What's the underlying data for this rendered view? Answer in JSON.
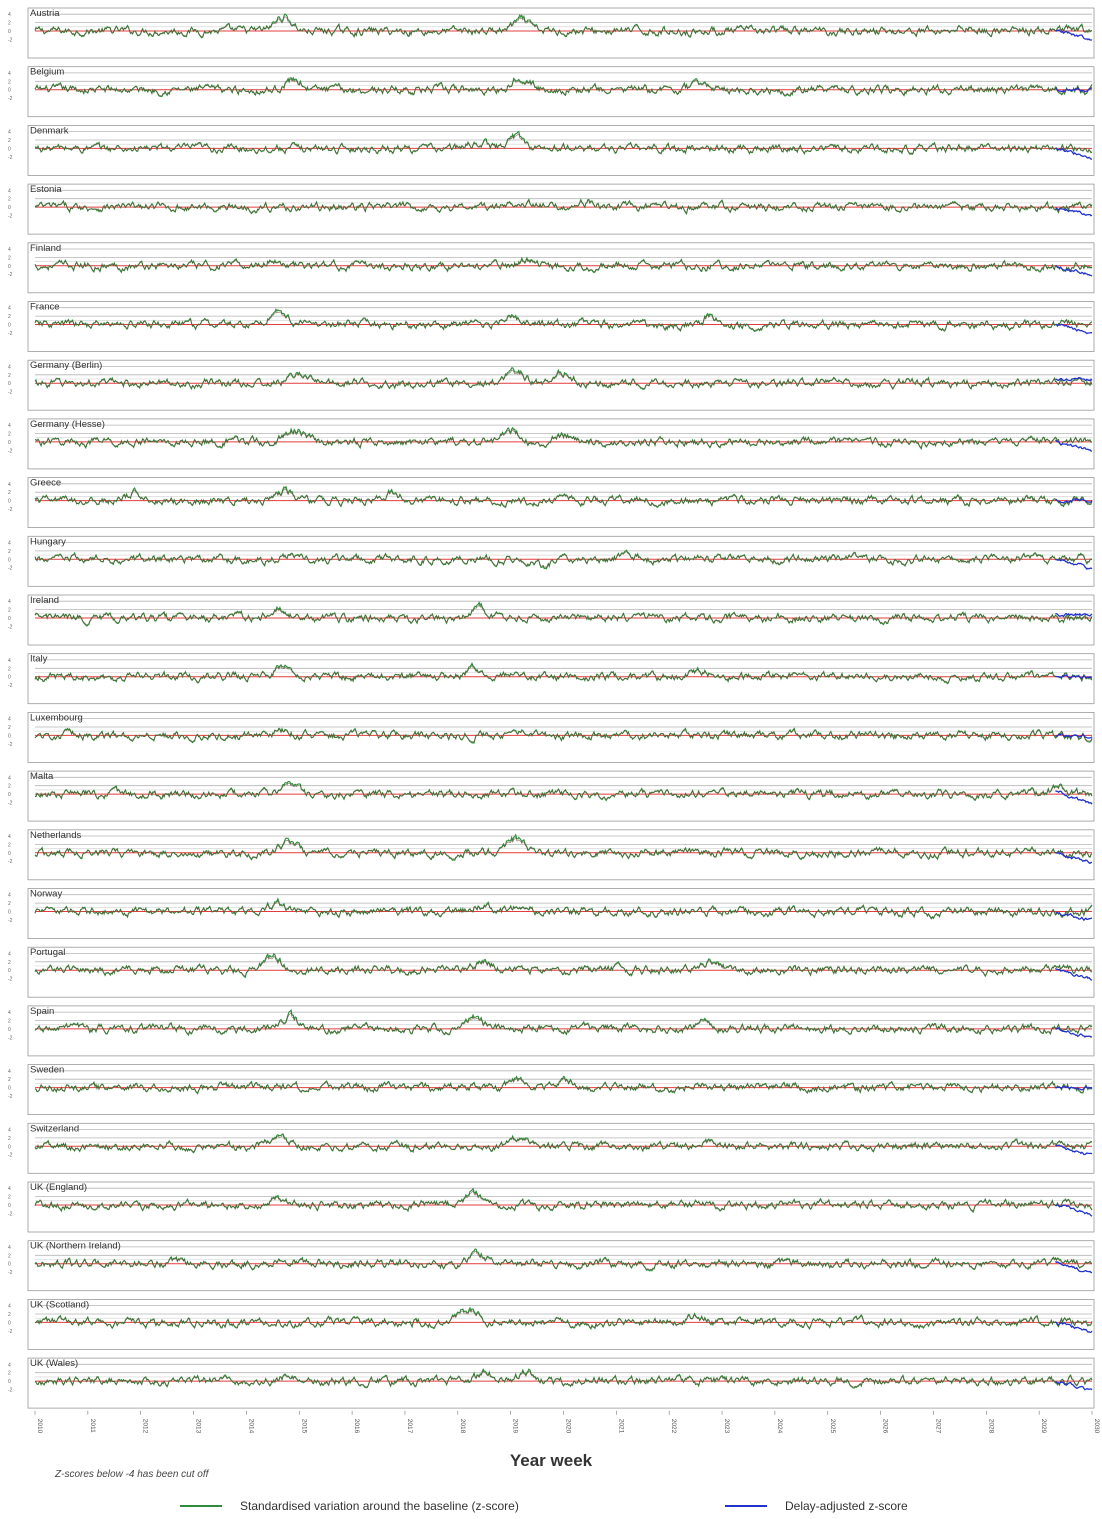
{
  "chart_data": {
    "type": "line",
    "xlabel": "Year week",
    "note": "Z-scores below -4 has been cut off",
    "x_ticks": [
      "2010",
      "2011",
      "2012",
      "2013",
      "2014",
      "2015",
      "2016",
      "2017",
      "2018",
      "2019",
      "2020",
      "2021",
      "2022",
      "2023",
      "2024",
      "2025",
      "2026",
      "2027",
      "2028",
      "2029",
      "2030"
    ],
    "legend": [
      {
        "label": "Standardised variation around the baseline (z-score)",
        "color": "#2e8b3a"
      },
      {
        "label": "Delay-adjusted z-score",
        "color": "#2233cc"
      }
    ],
    "reference_lines": {
      "baseline_color": "#e23c3c",
      "threshold_color": "#aaaaaa"
    },
    "panels": [
      {
        "name": "Austria",
        "peaks": [
          {
            "x": 2014.7,
            "h": 3.5
          },
          {
            "x": 2019.2,
            "h": 2.5
          },
          {
            "x": 2027.6,
            "h": 1.0
          }
        ],
        "tail_delay": "down"
      },
      {
        "name": "Belgium",
        "peaks": [
          {
            "x": 2014.9,
            "h": 2.5
          },
          {
            "x": 2019.2,
            "h": 3.5
          },
          {
            "x": 2022.6,
            "h": 1.5
          }
        ],
        "tail_delay": "flat"
      },
      {
        "name": "Denmark",
        "peaks": [
          {
            "x": 2019.1,
            "h": 3.0
          },
          {
            "x": 2018.4,
            "h": 1.5
          }
        ],
        "tail_delay": "down"
      },
      {
        "name": "Estonia",
        "peaks": [
          {
            "x": 2019.2,
            "h": 1.5
          },
          {
            "x": 2020.4,
            "h": 1.2
          }
        ],
        "tail_delay": "down"
      },
      {
        "name": "Finland",
        "peaks": [
          {
            "x": 2014.5,
            "h": 1.5
          },
          {
            "x": 2019.3,
            "h": 1.5
          }
        ],
        "tail_delay": "down"
      },
      {
        "name": "France",
        "peaks": [
          {
            "x": 2014.6,
            "h": 3.5
          },
          {
            "x": 2019.0,
            "h": 2.5
          },
          {
            "x": 2022.8,
            "h": 2.0
          }
        ],
        "tail_delay": "down"
      },
      {
        "name": "Germany (Berlin)",
        "peaks": [
          {
            "x": 2015.0,
            "h": 2.5
          },
          {
            "x": 2019.1,
            "h": 3.0
          },
          {
            "x": 2020.0,
            "h": 2.5
          }
        ],
        "tail_delay": "up"
      },
      {
        "name": "Germany (Hesse)",
        "peaks": [
          {
            "x": 2014.9,
            "h": 3.0
          },
          {
            "x": 2019.0,
            "h": 3.0
          },
          {
            "x": 2020.0,
            "h": 1.5
          }
        ],
        "tail_delay": "down"
      },
      {
        "name": "Greece",
        "peaks": [
          {
            "x": 2014.7,
            "h": 2.5
          },
          {
            "x": 2011.9,
            "h": 1.8
          },
          {
            "x": 2016.8,
            "h": 1.8
          }
        ],
        "tail_delay": "flat"
      },
      {
        "name": "Hungary",
        "peaks": [
          {
            "x": 2014.8,
            "h": 1.2
          },
          {
            "x": 2021.2,
            "h": 1.0
          },
          {
            "x": 2019.6,
            "h": -1.5
          }
        ],
        "tail_delay": "down"
      },
      {
        "name": "Ireland",
        "peaks": [
          {
            "x": 2014.6,
            "h": 2.5
          },
          {
            "x": 2018.4,
            "h": 2.5
          }
        ],
        "tail_delay": "up"
      },
      {
        "name": "Italy",
        "peaks": [
          {
            "x": 2014.7,
            "h": 3.0
          },
          {
            "x": 2018.3,
            "h": 2.0
          },
          {
            "x": 2022.6,
            "h": 1.5
          }
        ],
        "tail_delay": "flat"
      },
      {
        "name": "Luxembourg",
        "peaks": [
          {
            "x": 2014.7,
            "h": 1.2
          },
          {
            "x": 2019.2,
            "h": 1.0
          }
        ],
        "tail_delay": "flat"
      },
      {
        "name": "Malta",
        "peaks": [
          {
            "x": 2014.8,
            "h": 1.8
          },
          {
            "x": 2029.4,
            "h": 1.5
          }
        ],
        "tail_delay": "down"
      },
      {
        "name": "Netherlands",
        "peaks": [
          {
            "x": 2014.8,
            "h": 2.5
          },
          {
            "x": 2019.1,
            "h": 3.5
          }
        ],
        "tail_delay": "down"
      },
      {
        "name": "Norway",
        "peaks": [
          {
            "x": 2014.6,
            "h": 2.0
          },
          {
            "x": 2018.4,
            "h": 1.5
          },
          {
            "x": 2019.2,
            "h": 1.5
          }
        ],
        "tail_delay": "down"
      },
      {
        "name": "Portugal",
        "peaks": [
          {
            "x": 2014.5,
            "h": 3.0
          },
          {
            "x": 2018.5,
            "h": 2.0
          },
          {
            "x": 2022.8,
            "h": 2.5
          }
        ],
        "tail_delay": "down"
      },
      {
        "name": "Spain",
        "peaks": [
          {
            "x": 2014.8,
            "h": 3.0
          },
          {
            "x": 2018.3,
            "h": 2.5
          },
          {
            "x": 2022.7,
            "h": 1.5
          }
        ],
        "tail_delay": "down"
      },
      {
        "name": "Sweden",
        "peaks": [
          {
            "x": 2019.1,
            "h": 2.0
          },
          {
            "x": 2020.0,
            "h": 1.5
          },
          {
            "x": 2022.5,
            "h": 1.2
          }
        ],
        "tail_delay": "flat"
      },
      {
        "name": "Switzerland",
        "peaks": [
          {
            "x": 2014.6,
            "h": 3.0
          },
          {
            "x": 2019.2,
            "h": 2.0
          },
          {
            "x": 2022.8,
            "h": 1.5
          }
        ],
        "tail_delay": "down"
      },
      {
        "name": "UK (England)",
        "peaks": [
          {
            "x": 2014.6,
            "h": 2.0
          },
          {
            "x": 2018.3,
            "h": 3.0
          }
        ],
        "tail_delay": "down"
      },
      {
        "name": "UK (Northern Ireland)",
        "peaks": [
          {
            "x": 2018.4,
            "h": 2.5
          },
          {
            "x": 2014.8,
            "h": 1.0
          }
        ],
        "tail_delay": "down"
      },
      {
        "name": "UK (Scotland)",
        "peaks": [
          {
            "x": 2018.2,
            "h": 3.0
          },
          {
            "x": 2022.5,
            "h": 1.0
          }
        ],
        "tail_delay": "down"
      },
      {
        "name": "UK (Wales)",
        "peaks": [
          {
            "x": 2018.5,
            "h": 2.0
          },
          {
            "x": 2019.3,
            "h": 2.0
          },
          {
            "x": 2014.8,
            "h": 1.2
          }
        ],
        "tail_delay": "down"
      }
    ]
  }
}
